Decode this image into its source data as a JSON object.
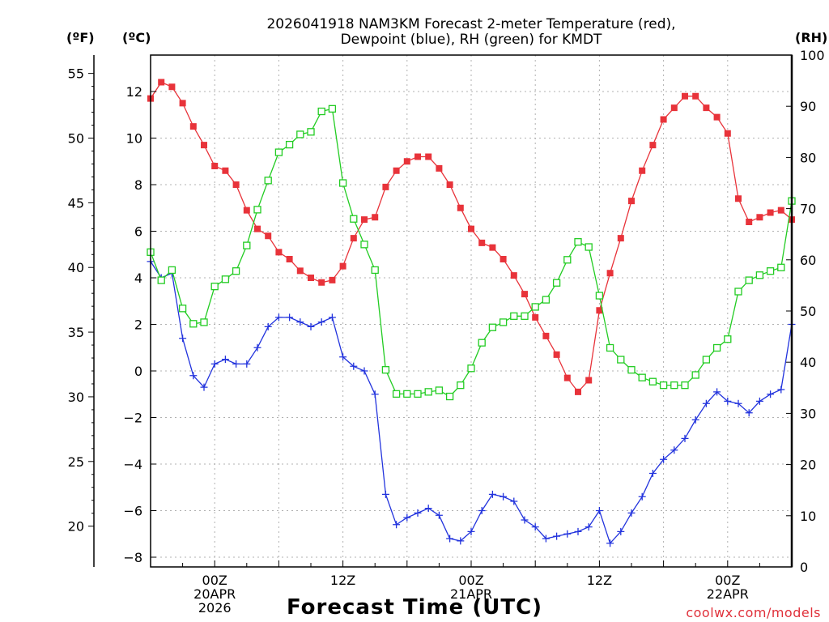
{
  "title_line1": "2026041918 NAM3KM Forecast 2-meter Temperature (red),",
  "title_line2": "Dewpoint (blue), RH (green) for KMDT",
  "axis_units": {
    "fahrenheit": "(ºF)",
    "celsius": "(ºC)",
    "rh": "(RH)"
  },
  "xlabel": "Forecast Time (UTC)",
  "credit": "coolwx.com/models",
  "colors": {
    "temperature": "#e8333a",
    "dewpoint": "#2233dd",
    "rh": "#22cc22",
    "grid": "#b0b0b0",
    "credit": "#e0303a"
  },
  "chart_data": {
    "type": "line",
    "title": "2026041918 NAM3KM Forecast 2-meter Temperature (red), Dewpoint (blue), RH (green) for KMDT",
    "xlabel": "Forecast Time (UTC)",
    "x_unit": "forecast hour",
    "x": [
      0,
      1,
      2,
      3,
      4,
      5,
      6,
      7,
      8,
      9,
      10,
      11,
      12,
      13,
      14,
      15,
      16,
      17,
      18,
      19,
      20,
      21,
      22,
      23,
      24,
      25,
      26,
      27,
      28,
      29,
      30,
      31,
      32,
      33,
      34,
      35,
      36,
      37,
      38,
      39,
      40,
      41,
      42,
      43,
      44,
      45,
      46,
      47,
      48,
      49,
      50,
      51,
      52,
      53,
      54,
      55,
      56,
      57,
      58,
      59,
      60
    ],
    "xlim": [
      0,
      60
    ],
    "x_ticks": [
      {
        "hour": 6,
        "lines": [
          "00Z",
          "20APR",
          "2026"
        ]
      },
      {
        "hour": 18,
        "lines": [
          "12Z"
        ]
      },
      {
        "hour": 30,
        "lines": [
          "00Z",
          "21APR"
        ]
      },
      {
        "hour": 42,
        "lines": [
          "12Z"
        ]
      },
      {
        "hour": 54,
        "lines": [
          "00Z",
          "22APR"
        ]
      }
    ],
    "left_axis_celsius": {
      "label": "(ºC)",
      "ylim": [
        -8.5,
        13.5
      ],
      "ticks": [
        12,
        10,
        8,
        6,
        4,
        2,
        0,
        -2,
        -4,
        -6,
        -8
      ]
    },
    "left_axis_fahrenheit": {
      "label": "(ºF)",
      "ticks": [
        55,
        50,
        45,
        40,
        35,
        30,
        25,
        20
      ]
    },
    "right_axis_rh": {
      "label": "(RH)",
      "ylim": [
        0,
        100
      ],
      "ticks": [
        100,
        90,
        80,
        70,
        60,
        50,
        40,
        30,
        20,
        10,
        0
      ]
    },
    "grid": true,
    "series": [
      {
        "name": "2-meter Temperature",
        "axis": "celsius",
        "color": "red",
        "marker": "filled-square",
        "values": [
          11.7,
          12.4,
          12.2,
          11.5,
          10.5,
          9.7,
          8.8,
          8.6,
          8.0,
          6.9,
          6.1,
          5.8,
          5.1,
          4.8,
          4.3,
          4.0,
          3.8,
          3.9,
          4.5,
          5.7,
          6.5,
          6.6,
          7.9,
          8.6,
          9.0,
          9.2,
          9.2,
          8.7,
          8.0,
          7.0,
          6.1,
          5.5,
          5.3,
          4.8,
          4.1,
          3.3,
          2.3,
          1.5,
          0.7,
          -0.3,
          -0.9,
          -0.4,
          2.6,
          4.2,
          5.7,
          7.3,
          8.6,
          9.7,
          10.8,
          11.3,
          11.8,
          11.8,
          11.3,
          10.9,
          10.2,
          7.4,
          6.4,
          6.6,
          6.8,
          6.9,
          6.5
        ]
      },
      {
        "name": "Dewpoint",
        "axis": "celsius",
        "color": "blue",
        "marker": "plus",
        "values": [
          4.7,
          4.0,
          4.2,
          1.4,
          -0.2,
          -0.7,
          0.3,
          0.5,
          0.3,
          0.3,
          1.0,
          1.9,
          2.3,
          2.3,
          2.1,
          1.9,
          2.1,
          2.3,
          0.6,
          0.2,
          0.0,
          -1.0,
          -5.3,
          -6.6,
          -6.3,
          -6.1,
          -5.9,
          -6.2,
          -7.2,
          -7.3,
          -6.9,
          -6.0,
          -5.3,
          -5.4,
          -5.6,
          -6.4,
          -6.7,
          -7.2,
          -7.1,
          -7.0,
          -6.9,
          -6.7,
          -6.0,
          -7.4,
          -6.9,
          -6.1,
          -5.4,
          -4.4,
          -3.8,
          -3.4,
          -2.9,
          -2.1,
          -1.4,
          -0.9,
          -1.3,
          -1.4,
          -1.8,
          -1.3,
          -1.0,
          -0.8,
          2.0
        ]
      },
      {
        "name": "RH",
        "axis": "rh",
        "color": "green",
        "marker": "open-square",
        "values": [
          61.5,
          56.0,
          58.0,
          50.5,
          47.5,
          47.8,
          54.8,
          56.2,
          57.8,
          62.8,
          69.8,
          75.5,
          81.0,
          82.5,
          84.5,
          85.0,
          89.0,
          89.5,
          75.0,
          68.0,
          63.0,
          58.0,
          38.5,
          33.8,
          33.8,
          33.8,
          34.2,
          34.5,
          33.3,
          35.5,
          38.8,
          43.8,
          46.8,
          47.8,
          49.0,
          49.0,
          50.8,
          52.2,
          55.5,
          60.0,
          63.5,
          62.5,
          53.0,
          42.8,
          40.5,
          38.5,
          37.0,
          36.2,
          35.5,
          35.5,
          35.5,
          37.5,
          40.5,
          42.8,
          44.5,
          53.8,
          56.0,
          57.0,
          57.8,
          58.5,
          71.5
        ]
      }
    ]
  }
}
